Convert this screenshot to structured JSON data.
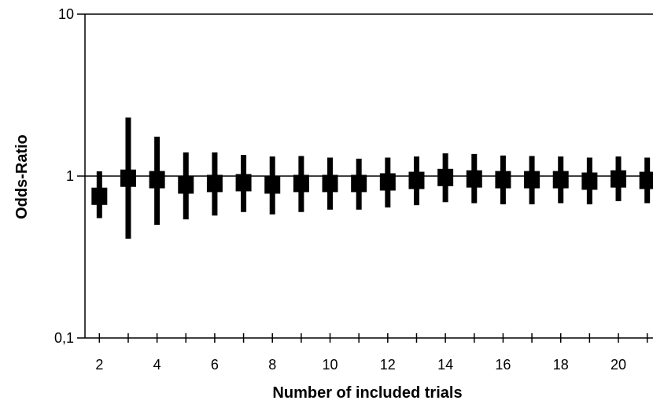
{
  "chart_data": {
    "type": "scatter",
    "title": "",
    "xlabel": "Number of included trials",
    "ylabel": "Odds-Ratio",
    "x_tick_labels": [
      "2",
      "4",
      "6",
      "8",
      "10",
      "12",
      "14",
      "16",
      "18",
      "20"
    ],
    "y_tick_labels": [
      "0,1",
      "1",
      "10"
    ],
    "y_scale": "log",
    "ylim": [
      0.1,
      10
    ],
    "xlim": [
      1.5,
      21.2
    ],
    "reference_line_y": 1,
    "grid": false,
    "legend": "none",
    "mark_color": "#000000",
    "points": [
      {
        "x": 2,
        "or": 0.75,
        "lower": 0.55,
        "upper": 1.07
      },
      {
        "x": 3,
        "or": 0.97,
        "lower": 0.41,
        "upper": 2.3
      },
      {
        "x": 4,
        "or": 0.95,
        "lower": 0.5,
        "upper": 1.75
      },
      {
        "x": 5,
        "or": 0.88,
        "lower": 0.54,
        "upper": 1.4
      },
      {
        "x": 6,
        "or": 0.9,
        "lower": 0.57,
        "upper": 1.4
      },
      {
        "x": 7,
        "or": 0.91,
        "lower": 0.6,
        "upper": 1.35
      },
      {
        "x": 8,
        "or": 0.88,
        "lower": 0.58,
        "upper": 1.32
      },
      {
        "x": 9,
        "or": 0.9,
        "lower": 0.6,
        "upper": 1.33
      },
      {
        "x": 10,
        "or": 0.9,
        "lower": 0.62,
        "upper": 1.3
      },
      {
        "x": 11,
        "or": 0.9,
        "lower": 0.62,
        "upper": 1.28
      },
      {
        "x": 12,
        "or": 0.92,
        "lower": 0.64,
        "upper": 1.3
      },
      {
        "x": 13,
        "or": 0.94,
        "lower": 0.66,
        "upper": 1.32
      },
      {
        "x": 14,
        "or": 0.98,
        "lower": 0.69,
        "upper": 1.38
      },
      {
        "x": 15,
        "or": 0.96,
        "lower": 0.68,
        "upper": 1.37
      },
      {
        "x": 16,
        "or": 0.95,
        "lower": 0.67,
        "upper": 1.34
      },
      {
        "x": 17,
        "or": 0.95,
        "lower": 0.67,
        "upper": 1.33
      },
      {
        "x": 18,
        "or": 0.95,
        "lower": 0.68,
        "upper": 1.32
      },
      {
        "x": 19,
        "or": 0.93,
        "lower": 0.67,
        "upper": 1.3
      },
      {
        "x": 20,
        "or": 0.96,
        "lower": 0.7,
        "upper": 1.32
      },
      {
        "x": 21,
        "or": 0.94,
        "lower": 0.68,
        "upper": 1.3
      }
    ]
  }
}
